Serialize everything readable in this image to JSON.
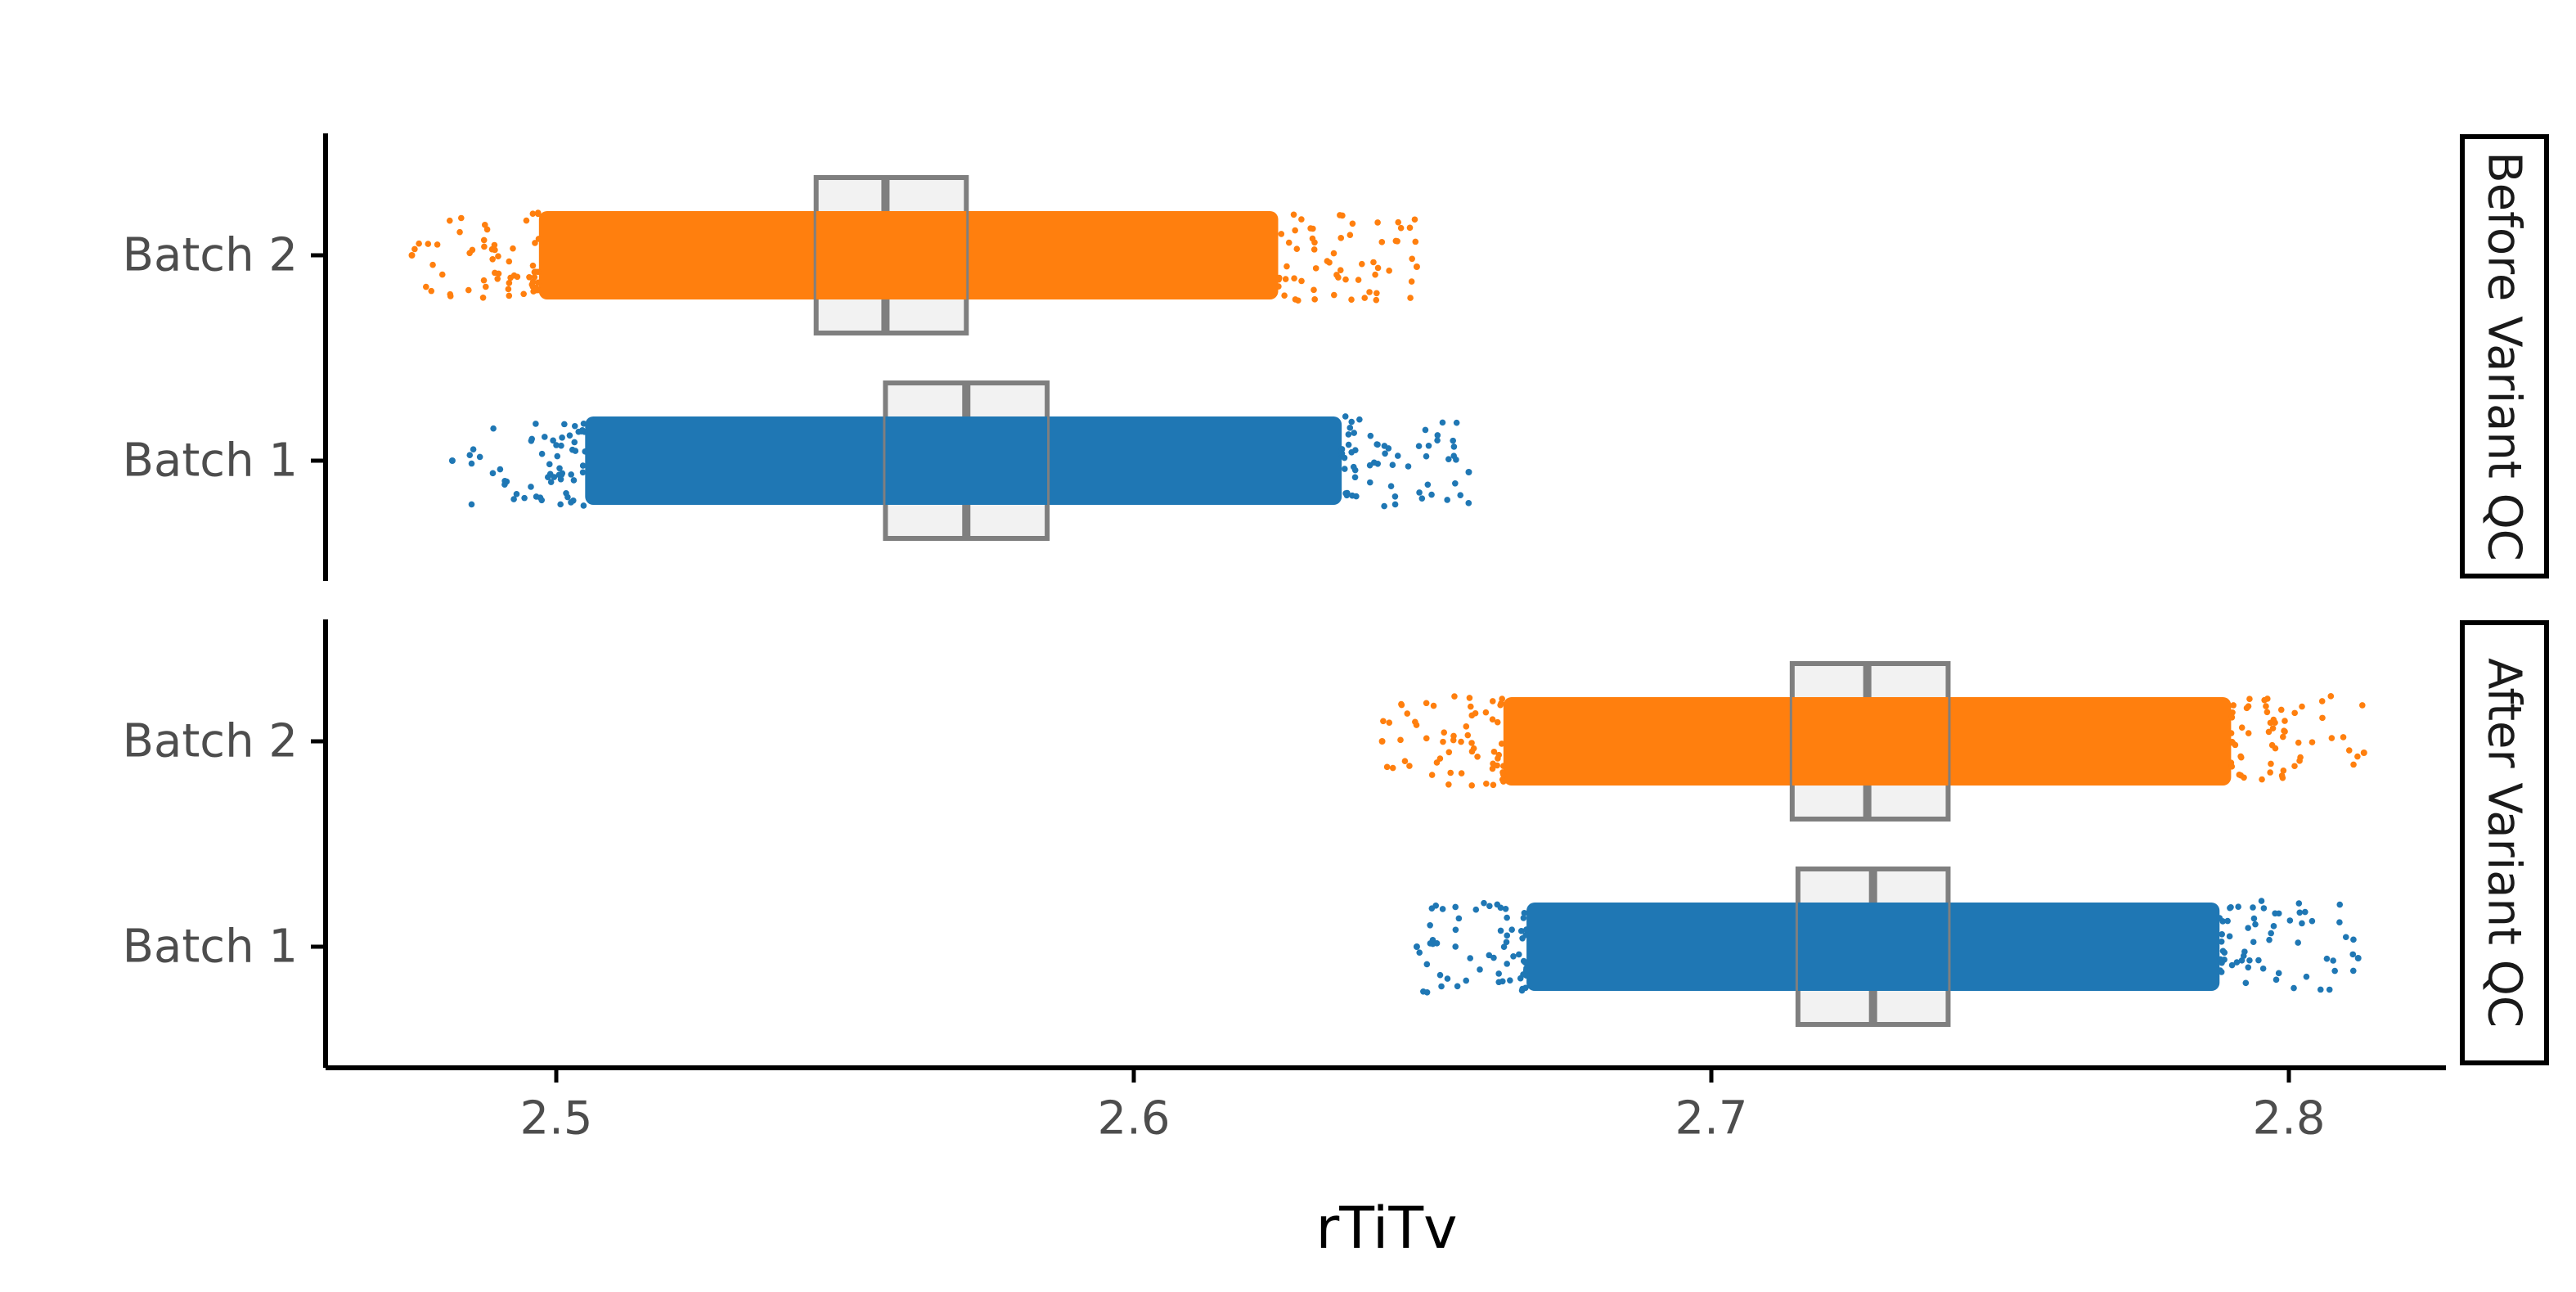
{
  "chart_data": {
    "type": "scatter",
    "subtype": "jittered strip plot with boxplots, faceted",
    "xlabel": "rTiTv",
    "ylabel": "",
    "xlim": [
      2.46,
      2.83
    ],
    "x_ticks": [
      2.5,
      2.6,
      2.7,
      2.8
    ],
    "x_tick_labels": [
      "2.5",
      "2.6",
      "2.7",
      "2.8"
    ],
    "categories": [
      "Batch 1",
      "Batch 2"
    ],
    "grid": false,
    "legend": "none",
    "colors": {
      "Batch 1": "#1f77b4",
      "Batch 2": "#ff7f0e",
      "box_fill": "#f2f2f2",
      "box_stroke": "#7f7f7f"
    },
    "facets": [
      {
        "label": "Before Variant QC",
        "series": [
          {
            "category": "Batch 2",
            "box": {
              "q1": 2.545,
              "median": 2.557,
              "q3": 2.571
            },
            "dense_range": [
              2.497,
              2.625
            ],
            "points_range": [
              2.475,
              2.649
            ]
          },
          {
            "category": "Batch 1",
            "box": {
              "q1": 2.557,
              "median": 2.571,
              "q3": 2.585
            },
            "dense_range": [
              2.505,
              2.636
            ],
            "points_range": [
              2.482,
              2.658
            ]
          }
        ]
      },
      {
        "label": "After Variant QC",
        "series": [
          {
            "category": "Batch 2",
            "box": {
              "q1": 2.714,
              "median": 2.727,
              "q3": 2.741
            },
            "dense_range": [
              2.664,
              2.79
            ],
            "points_range": [
              2.643,
              2.813
            ]
          },
          {
            "category": "Batch 1",
            "box": {
              "q1": 2.715,
              "median": 2.728,
              "q3": 2.741
            },
            "dense_range": [
              2.668,
              2.788
            ],
            "points_range": [
              2.649,
              2.812
            ]
          }
        ]
      }
    ]
  }
}
